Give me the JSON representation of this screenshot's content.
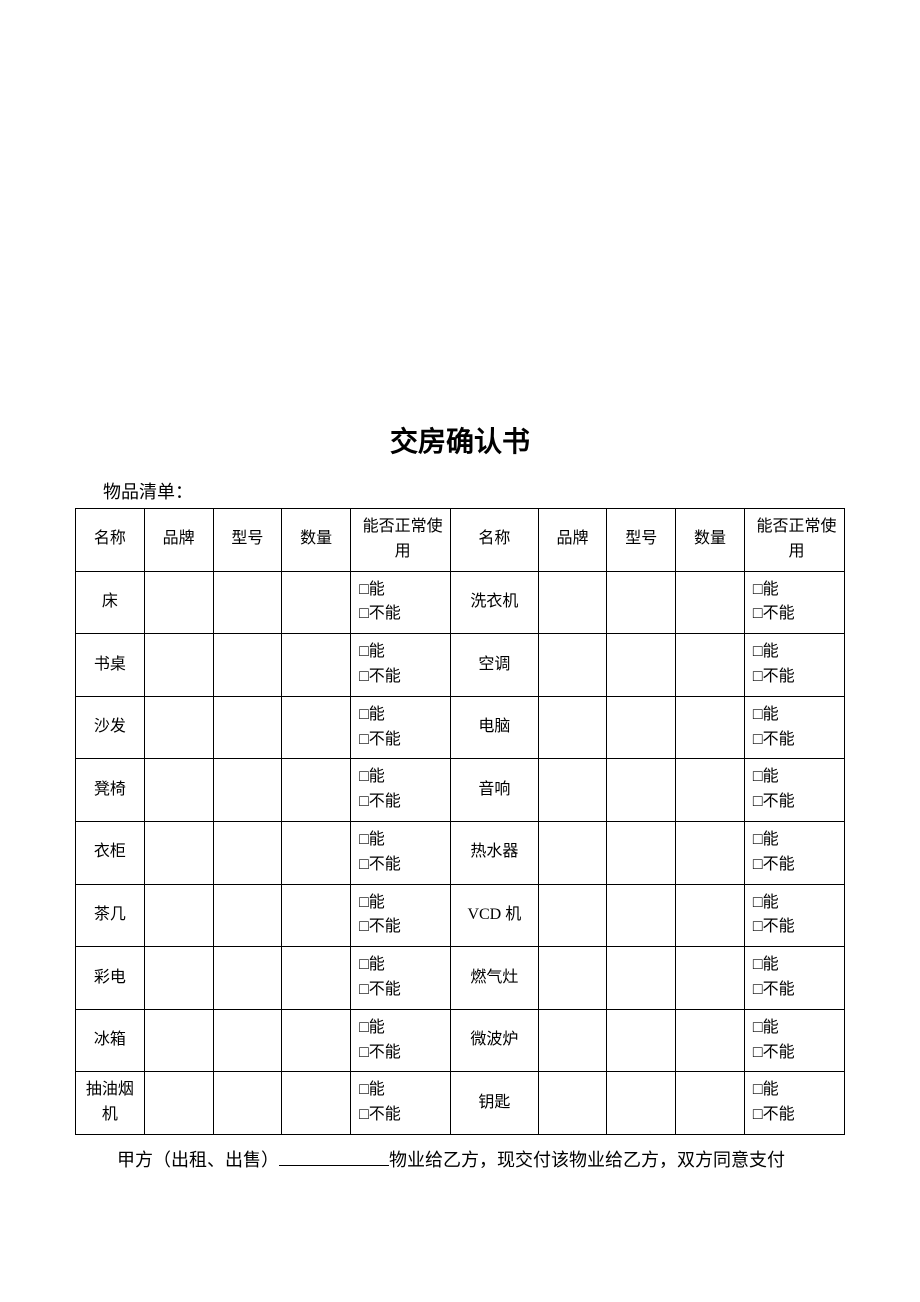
{
  "title": "交房确认书",
  "subtitle": "物品清单：",
  "headers": {
    "name": "名称",
    "brand": "品牌",
    "model": "型号",
    "qty": "数量",
    "status": "能否正常使用"
  },
  "checkbox_yes": "□能",
  "checkbox_no": "□不能",
  "rows": [
    {
      "left": "床",
      "right": "洗衣机"
    },
    {
      "left": "书桌",
      "right": "空调"
    },
    {
      "left": "沙发",
      "right": "电脑"
    },
    {
      "left": "凳椅",
      "right": "音响"
    },
    {
      "left": "衣柜",
      "right": "热水器"
    },
    {
      "left": "茶几",
      "right": "VCD 机"
    },
    {
      "left": "彩电",
      "right": "燃气灶"
    },
    {
      "left": "冰箱",
      "right": "微波炉"
    },
    {
      "left": "抽油烟机",
      "right": "钥匙"
    }
  ],
  "footer": {
    "prefix": "甲方（出租、出售）",
    "suffix": "物业给乙方，现交付该物业给乙方，双方同意支付"
  },
  "colors": {
    "text": "#000000",
    "background": "#ffffff",
    "border": "#000000"
  }
}
